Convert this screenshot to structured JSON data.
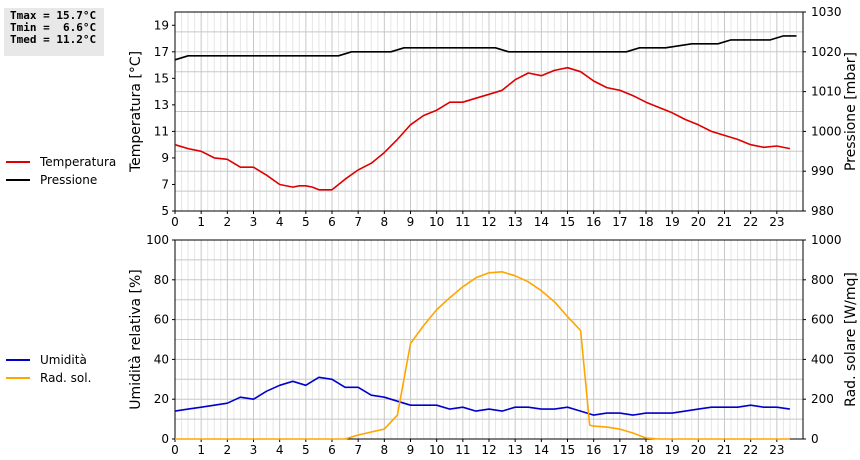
{
  "stats": {
    "tmax": "Tmax = 15.7°C",
    "tmin": "Tmin =  6.6°C",
    "tmed": "Tmed = 11.2°C"
  },
  "legend_top": [
    {
      "label": "Temperatura",
      "color": "#dd0000"
    },
    {
      "label": "Pressione",
      "color": "#000000"
    }
  ],
  "legend_bottom": [
    {
      "label": "Umidità",
      "color": "#0000cc"
    },
    {
      "label": "Rad. sol.",
      "color": "#ffa500"
    }
  ],
  "chart_data": [
    {
      "type": "line",
      "xlabel": "",
      "ylabel": "Temperatura [°C]",
      "y2label": "Pressione [mbar]",
      "xlim": [
        0,
        24
      ],
      "ylim": [
        5,
        20
      ],
      "y2lim": [
        980,
        1030
      ],
      "xticks": [
        "0",
        "1",
        "2",
        "3",
        "4",
        "5",
        "6",
        "7",
        "8",
        "9",
        "10",
        "11",
        "12",
        "13",
        "14",
        "15",
        "16",
        "17",
        "18",
        "19",
        "20",
        "21",
        "22",
        "23"
      ],
      "yticks": [
        "5",
        "7",
        "9",
        "11",
        "13",
        "15",
        "17",
        "19"
      ],
      "y2ticks": [
        "980",
        "990",
        "1000",
        "1010",
        "1020",
        "1030"
      ],
      "grid": true,
      "series": [
        {
          "name": "Temperatura",
          "axis": "left",
          "color": "#dd0000",
          "x": [
            0,
            0.5,
            1,
            1.5,
            2,
            2.5,
            3,
            3.5,
            4,
            4.5,
            4.75,
            5,
            5.25,
            5.5,
            5.75,
            6,
            6.5,
            7,
            7.5,
            8,
            8.5,
            9,
            9.5,
            10,
            10.5,
            11,
            11.5,
            12,
            12.5,
            13,
            13.5,
            14,
            14.5,
            15,
            15.5,
            16,
            16.5,
            17,
            17.5,
            18,
            18.5,
            19,
            19.5,
            20,
            20.5,
            21,
            21.5,
            22,
            22.5,
            23,
            23.5
          ],
          "y": [
            10.0,
            9.7,
            9.5,
            9.0,
            8.9,
            8.3,
            8.3,
            7.7,
            7.0,
            6.8,
            6.9,
            6.9,
            6.8,
            6.6,
            6.6,
            6.6,
            7.4,
            8.1,
            8.6,
            9.4,
            10.4,
            11.5,
            12.2,
            12.6,
            13.2,
            13.2,
            13.5,
            13.8,
            14.1,
            14.9,
            15.4,
            15.2,
            15.6,
            15.8,
            15.5,
            14.8,
            14.3,
            14.1,
            13.7,
            13.2,
            12.8,
            12.4,
            11.9,
            11.5,
            11.0,
            10.7,
            10.4,
            10.0,
            9.8,
            9.9,
            9.7
          ]
        },
        {
          "name": "Pressione",
          "axis": "right",
          "color": "#000000",
          "x": [
            0,
            0.5,
            6.25,
            6.75,
            8.25,
            8.75,
            12.25,
            12.75,
            17.25,
            17.75,
            18.75,
            19.75,
            20.75,
            21.25,
            22.75,
            23.25,
            23.75
          ],
          "y": [
            1018,
            1019,
            1019,
            1020,
            1020,
            1021,
            1021,
            1020,
            1020,
            1021,
            1021,
            1022,
            1022,
            1023,
            1023,
            1024,
            1024
          ]
        }
      ]
    },
    {
      "type": "line",
      "xlabel": "",
      "ylabel": "Umidità relativa [%]",
      "y2label": "Rad. solare [W/mq]",
      "xlim": [
        0,
        24
      ],
      "ylim": [
        0,
        100
      ],
      "y2lim": [
        0,
        1000
      ],
      "xticks": [
        "0",
        "1",
        "2",
        "3",
        "4",
        "5",
        "6",
        "7",
        "8",
        "9",
        "10",
        "11",
        "12",
        "13",
        "14",
        "15",
        "16",
        "17",
        "18",
        "19",
        "20",
        "21",
        "22",
        "23"
      ],
      "yticks": [
        "0",
        "20",
        "40",
        "60",
        "80",
        "100"
      ],
      "y2ticks": [
        "0",
        "200",
        "400",
        "600",
        "800",
        "1000"
      ],
      "grid": true,
      "series": [
        {
          "name": "Umidità",
          "axis": "left",
          "color": "#0000cc",
          "x": [
            0,
            0.5,
            1,
            1.5,
            2,
            2.5,
            3,
            3.5,
            4,
            4.5,
            5,
            5.5,
            6,
            6.5,
            7,
            7.5,
            8,
            8.5,
            9,
            9.5,
            10,
            10.5,
            11,
            11.5,
            12,
            12.5,
            13,
            13.5,
            14,
            14.5,
            15,
            15.5,
            16,
            16.5,
            17,
            17.5,
            18,
            18.5,
            19,
            19.5,
            20,
            20.5,
            21,
            21.5,
            22,
            22.5,
            23,
            23.5
          ],
          "y": [
            14,
            15,
            16,
            17,
            18,
            21,
            20,
            24,
            27,
            29,
            27,
            31,
            30,
            26,
            26,
            22,
            21,
            19,
            17,
            17,
            17,
            15,
            16,
            14,
            15,
            14,
            16,
            16,
            15,
            15,
            16,
            14,
            12,
            13,
            13,
            12,
            13,
            13,
            13,
            14,
            15,
            16,
            16,
            16,
            17,
            16,
            16,
            15
          ]
        },
        {
          "name": "Rad. sol.",
          "axis": "right",
          "color": "#ffa500",
          "x": [
            0,
            6.5,
            7,
            7.5,
            8,
            8.5,
            9,
            9.5,
            10,
            10.5,
            11,
            11.5,
            12,
            12.5,
            13,
            13.5,
            14,
            14.5,
            15,
            15.5,
            15.85,
            16,
            16.5,
            17,
            17.5,
            18,
            18.5,
            23.5
          ],
          "y": [
            0,
            0,
            20,
            35,
            50,
            120,
            480,
            570,
            650,
            710,
            765,
            810,
            835,
            840,
            820,
            790,
            745,
            690,
            615,
            545,
            70,
            65,
            60,
            50,
            30,
            5,
            0,
            0
          ]
        }
      ]
    }
  ]
}
